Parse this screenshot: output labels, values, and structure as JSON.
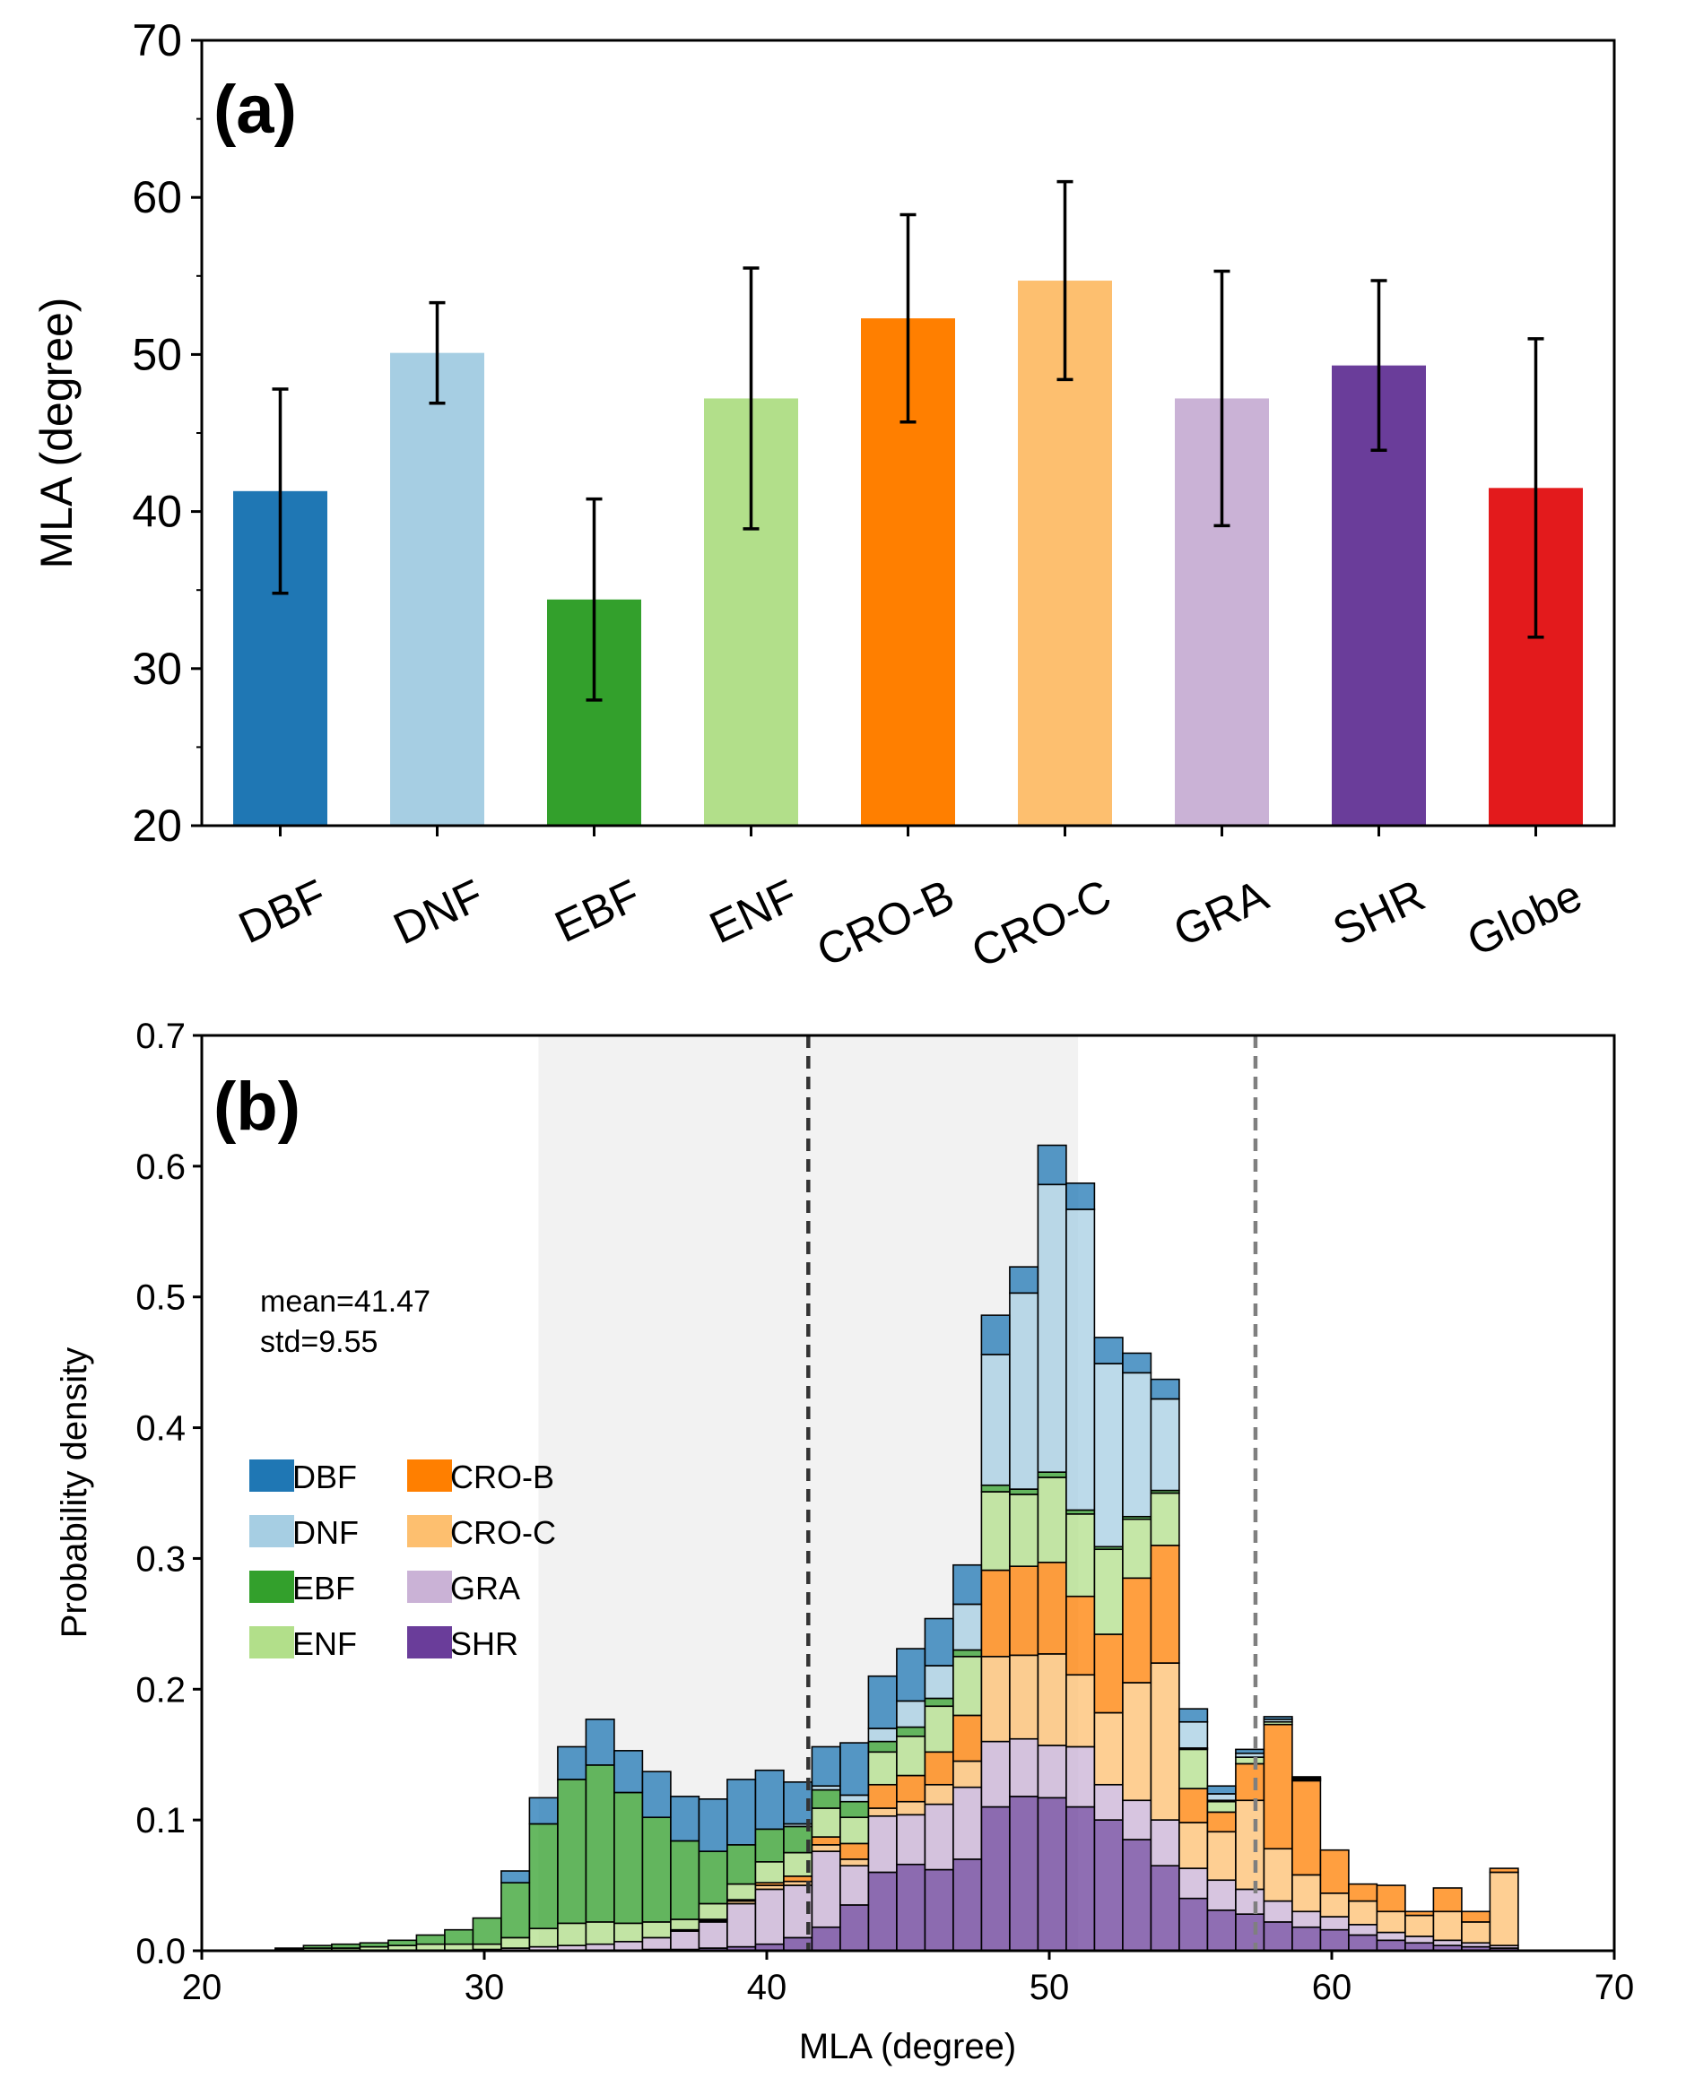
{
  "chart_data": [
    {
      "type": "bar",
      "panel_label": "(a)",
      "xlabel": "",
      "ylabel": "MLA (degree)",
      "ylim": [
        20,
        70
      ],
      "yticks": [
        20,
        30,
        40,
        50,
        60,
        70
      ],
      "categories": [
        "DBF",
        "DNF",
        "EBF",
        "ENF",
        "CRO-B",
        "CRO-C",
        "GRA",
        "SHR",
        "Globe"
      ],
      "values": [
        41.3,
        50.1,
        34.4,
        47.2,
        52.3,
        54.7,
        47.2,
        49.3,
        41.5
      ],
      "errors": [
        6.5,
        3.2,
        6.4,
        8.3,
        6.6,
        6.3,
        8.1,
        5.4,
        9.5
      ],
      "colors": [
        "#1f77b4",
        "#a6cee3",
        "#33a02c",
        "#b2df8a",
        "#ff7f00",
        "#fdbf6f",
        "#cab2d6",
        "#6a3d9a",
        "#e31a1c"
      ],
      "grid": false
    },
    {
      "type": "bar",
      "subtype": "stacked-histogram",
      "panel_label": "(b)",
      "xlabel": "MLA (degree)",
      "ylabel": "Probability density",
      "xlim": [
        20,
        70
      ],
      "ylim": [
        0,
        0.7
      ],
      "xticks": [
        20,
        30,
        40,
        50,
        60,
        70
      ],
      "yticks": [
        "0.0",
        "0.1",
        "0.2",
        "0.3",
        "0.4",
        "0.5",
        "0.6",
        "0.7"
      ],
      "bin_width": 1,
      "bin_starts": [
        22.6,
        23.6,
        24.6,
        25.6,
        26.6,
        27.6,
        28.6,
        29.6,
        30.6,
        31.6,
        32.6,
        33.6,
        34.6,
        35.6,
        36.6,
        37.6,
        38.6,
        39.6,
        40.6,
        41.6,
        42.6,
        43.6,
        44.6,
        45.6,
        46.6,
        47.6,
        48.6,
        49.6,
        50.6,
        51.6,
        52.6,
        53.6,
        54.6,
        55.6,
        56.6,
        57.6,
        58.6,
        59.6,
        60.6,
        61.6,
        62.6,
        63.6,
        64.6,
        65.6
      ],
      "series": [
        {
          "name": "SHR",
          "color": "#6a3d9a",
          "values": [
            0,
            0,
            0,
            0,
            0,
            0,
            0,
            0,
            0,
            0,
            0,
            0,
            0,
            0.001,
            0.001,
            0.002,
            0.003,
            0.005,
            0.01,
            0.018,
            0.035,
            0.06,
            0.066,
            0.062,
            0.07,
            0.11,
            0.118,
            0.117,
            0.11,
            0.1,
            0.085,
            0.065,
            0.04,
            0.031,
            0.028,
            0.022,
            0.018,
            0.016,
            0.012,
            0.008,
            0.006,
            0.004,
            0.003,
            0.002
          ]
        },
        {
          "name": "GRA",
          "color": "#cab2d6",
          "values": [
            0,
            0,
            0,
            0,
            0,
            0,
            0,
            0.001,
            0.002,
            0.003,
            0.004,
            0.005,
            0.007,
            0.009,
            0.014,
            0.02,
            0.033,
            0.042,
            0.04,
            0.058,
            0.03,
            0.043,
            0.038,
            0.05,
            0.055,
            0.05,
            0.044,
            0.04,
            0.046,
            0.027,
            0.03,
            0.035,
            0.023,
            0.023,
            0.019,
            0.016,
            0.012,
            0.01,
            0.008,
            0.006,
            0.005,
            0.004,
            0.003,
            0.002
          ]
        },
        {
          "name": "CRO-C",
          "color": "#fdbf6f",
          "values": [
            0,
            0,
            0,
            0,
            0,
            0,
            0,
            0,
            0,
            0,
            0,
            0,
            0,
            0,
            0,
            0.001,
            0.002,
            0.003,
            0.003,
            0.005,
            0.005,
            0.006,
            0.01,
            0.015,
            0.02,
            0.065,
            0.064,
            0.07,
            0.055,
            0.055,
            0.09,
            0.12,
            0.035,
            0.037,
            0.068,
            0.04,
            0.028,
            0.018,
            0.018,
            0.016,
            0.016,
            0.022,
            0.016,
            0.056
          ]
        },
        {
          "name": "CRO-B",
          "color": "#ff7f00",
          "values": [
            0,
            0,
            0,
            0,
            0,
            0,
            0,
            0,
            0,
            0,
            0,
            0,
            0,
            0,
            0.001,
            0.001,
            0.001,
            0.002,
            0.004,
            0.006,
            0.012,
            0.018,
            0.02,
            0.025,
            0.035,
            0.066,
            0.068,
            0.07,
            0.06,
            0.06,
            0.08,
            0.09,
            0.026,
            0.015,
            0.028,
            0.095,
            0.072,
            0.033,
            0.013,
            0.02,
            0.003,
            0.018,
            0.008,
            0.003
          ]
        },
        {
          "name": "ENF",
          "color": "#b2df8a",
          "values": [
            0.001,
            0.002,
            0.002,
            0.003,
            0.004,
            0.005,
            0.005,
            0.004,
            0.008,
            0.014,
            0.017,
            0.017,
            0.014,
            0.012,
            0.008,
            0.012,
            0.012,
            0.016,
            0.018,
            0.022,
            0.02,
            0.025,
            0.03,
            0.035,
            0.045,
            0.06,
            0.055,
            0.065,
            0.063,
            0.065,
            0.045,
            0.04,
            0.03,
            0.008,
            0.005,
            0.002,
            0.001,
            0,
            0,
            0,
            0,
            0,
            0,
            0
          ]
        },
        {
          "name": "EBF",
          "color": "#33a02c",
          "values": [
            0.001,
            0.002,
            0.003,
            0.003,
            0.004,
            0.007,
            0.011,
            0.02,
            0.042,
            0.08,
            0.11,
            0.12,
            0.1,
            0.08,
            0.06,
            0.04,
            0.03,
            0.025,
            0.02,
            0.014,
            0.012,
            0.008,
            0.007,
            0.006,
            0.005,
            0.005,
            0.004,
            0.004,
            0.003,
            0.002,
            0.002,
            0.002,
            0.001,
            0.001,
            0,
            0,
            0,
            0,
            0,
            0,
            0,
            0,
            0,
            0
          ]
        },
        {
          "name": "DNF",
          "color": "#a6cee3",
          "values": [
            0,
            0,
            0,
            0,
            0,
            0,
            0,
            0,
            0,
            0,
            0,
            0,
            0,
            0,
            0,
            0,
            0,
            0,
            0.002,
            0.003,
            0.005,
            0.01,
            0.02,
            0.025,
            0.035,
            0.1,
            0.15,
            0.22,
            0.23,
            0.14,
            0.11,
            0.07,
            0.02,
            0.005,
            0.003,
            0.002,
            0.001,
            0,
            0,
            0,
            0,
            0,
            0,
            0
          ]
        },
        {
          "name": "DBF",
          "color": "#1f77b4",
          "values": [
            0,
            0,
            0,
            0,
            0,
            0,
            0,
            0,
            0.009,
            0.02,
            0.025,
            0.035,
            0.032,
            0.035,
            0.034,
            0.04,
            0.05,
            0.045,
            0.032,
            0.03,
            0.04,
            0.04,
            0.04,
            0.036,
            0.03,
            0.03,
            0.02,
            0.03,
            0.02,
            0.02,
            0.015,
            0.015,
            0.01,
            0.006,
            0.003,
            0.002,
            0.001,
            0,
            0,
            0,
            0,
            0,
            0,
            0
          ]
        }
      ],
      "mean": 41.47,
      "std": 9.55,
      "shaded_range": [
        31.92,
        51.02
      ],
      "dashed_lines": [
        41.47,
        57.3
      ],
      "annotation_lines": [
        "mean=41.47",
        "std=9.55"
      ],
      "legend_order": [
        "DBF",
        "DNF",
        "EBF",
        "ENF",
        "CRO-B",
        "CRO-C",
        "GRA",
        "SHR"
      ],
      "legend_placement": "center-left",
      "grid": false
    }
  ]
}
